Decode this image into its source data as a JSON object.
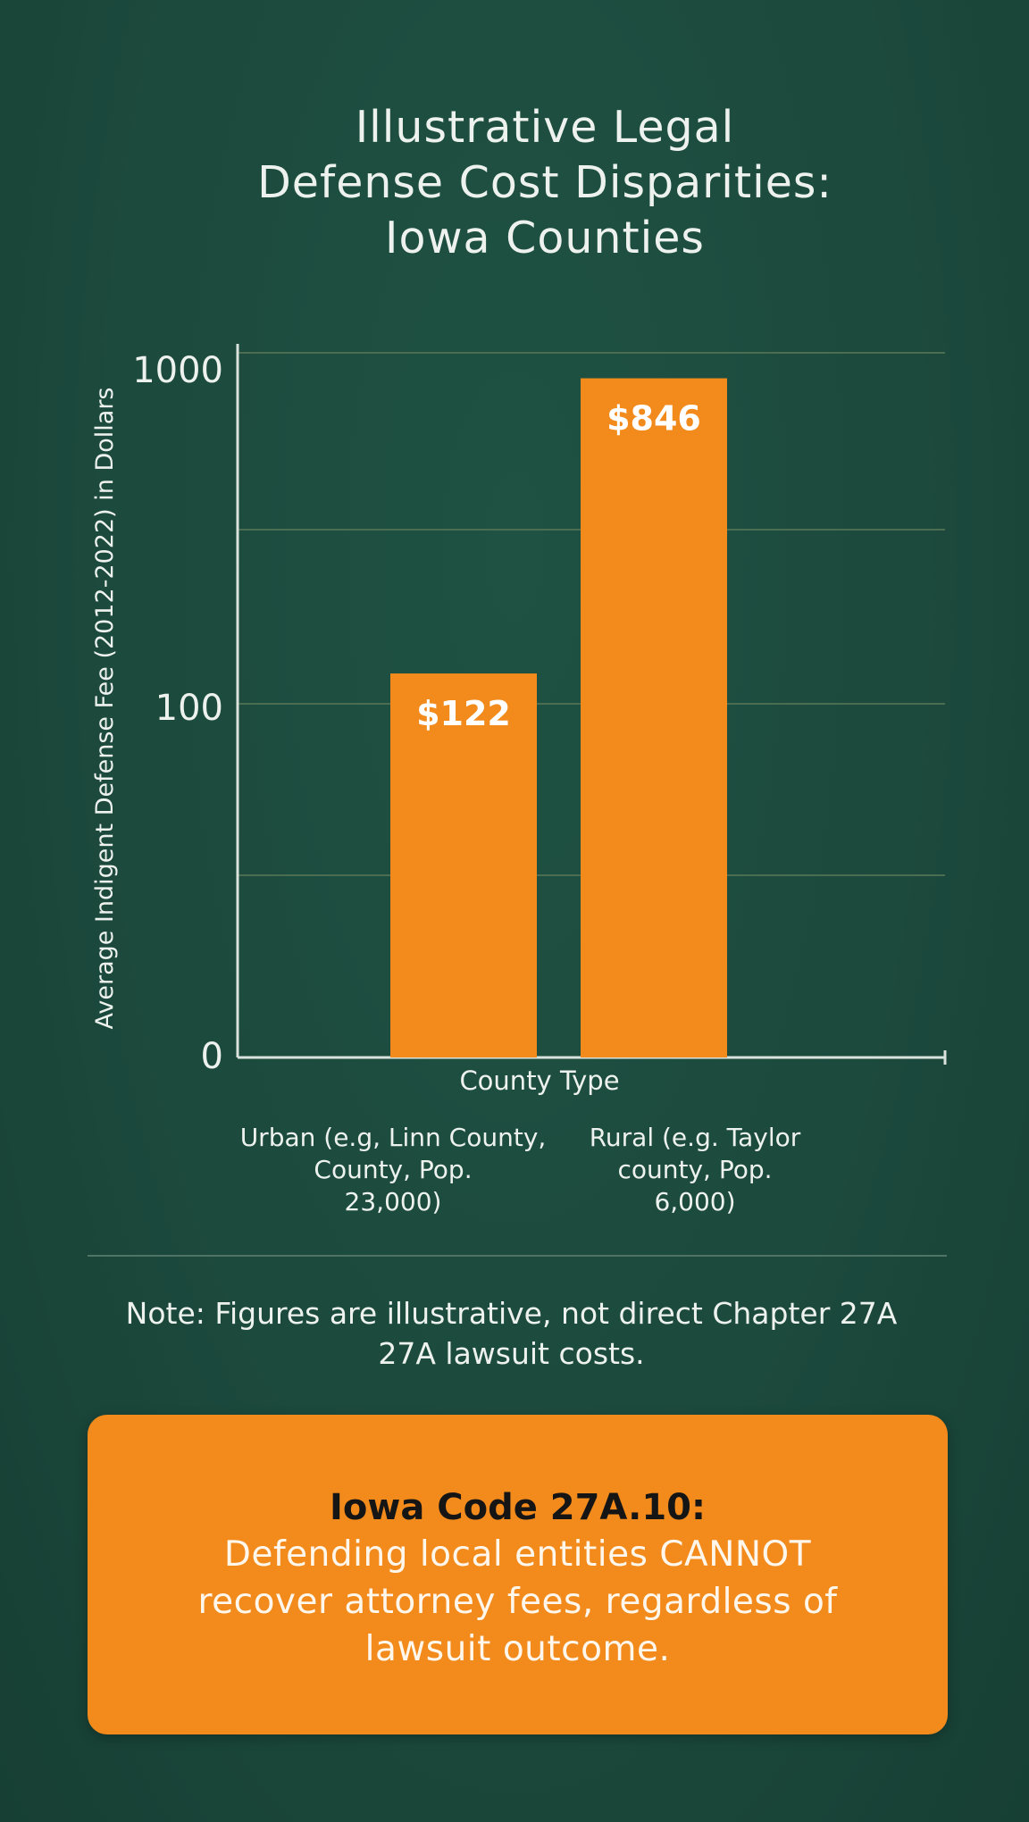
{
  "chart_data": {
    "type": "bar",
    "title": "Illustrative Legal Defense Cost Disparities: Iowa Counties",
    "title_lines": [
      "Illustrative Legal",
      "Defense Cost Disparities:",
      "Iowa Counties"
    ],
    "xlabel": "County Type",
    "ylabel": "Average Indigent Defense Fee (2012-2022) in Dollars",
    "y_scale": "log",
    "y_ticks": [
      "0",
      "100",
      "1000"
    ],
    "categories": [
      "Urban (e.g, Linn County, County, Pop. 23,000)",
      "Rural (e.g. Taylor county, Pop. 6,000)"
    ],
    "category_lines": [
      [
        "Urban (e.g, Linn County,",
        "County, Pop.",
        "23,000)"
      ],
      [
        "Rural (e.g. Taylor",
        "county, Pop.",
        "6,000)"
      ]
    ],
    "values": [
      122,
      846
    ],
    "data_labels": [
      "$122",
      "$846"
    ],
    "grid": true,
    "bar_color": "#f28a1c",
    "axis_color": "#d9e2dc",
    "grid_color": "#4b6e52"
  },
  "note": "Note: Figures are illustrative, not direct Chapter 27A 27A lawsuit costs.",
  "note_lines": [
    "Note: Figures are illustrative, not direct Chapter 27A",
    "27A lawsuit costs."
  ],
  "callout": {
    "heading": "Iowa Code 27A.10:",
    "body": "Defending local entities CANNOT recover attorney fees, regardless of lawsuit outcome."
  },
  "colors": {
    "background": "#1c4a3d",
    "accent": "#f28a1c"
  }
}
